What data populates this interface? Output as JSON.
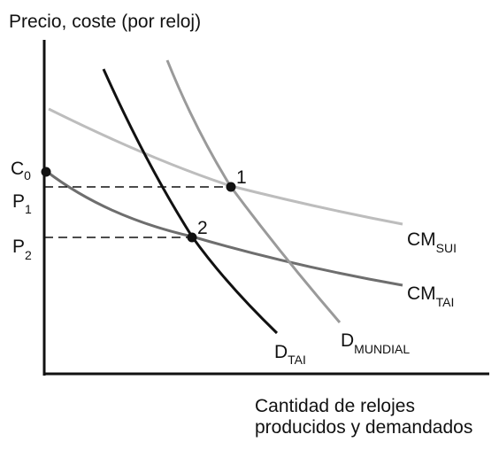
{
  "labels": {
    "y_axis": "Precio, coste (por reloj)",
    "x_axis_line1": "Cantidad de relojes",
    "x_axis_line2": "producidos y demandados",
    "c0_main": "C",
    "c0_sub": "0",
    "p1_main": "P",
    "p1_sub": "1",
    "p2_main": "P",
    "p2_sub": "2",
    "point1": "1",
    "point2": "2",
    "cm_sui_main": "CM",
    "cm_sui_sub": "SUI",
    "cm_tai_main": "CM",
    "cm_tai_sub": "TAI",
    "d_tai_main": "D",
    "d_tai_sub": "TAI",
    "d_mundial_main": "D",
    "d_mundial_sub": "MUNDIAL"
  },
  "colors": {
    "axis": "#111111",
    "cm_sui": "#bdbdbd",
    "cm_tai": "#6e6e6e",
    "d_tai": "#111111",
    "d_mundial": "#9a9a9a",
    "dashes": "#111111",
    "points": "#111111"
  }
}
